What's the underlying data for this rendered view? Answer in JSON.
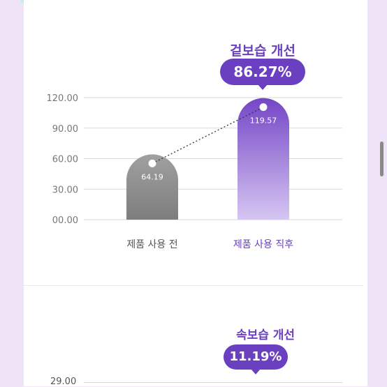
{
  "chart_data": [
    {
      "type": "bar",
      "heading": "겉보습 개선",
      "badge": "86.27%",
      "categories": [
        "제품 사용 전",
        "제품 사용 직후"
      ],
      "values": [
        64.19,
        119.57
      ],
      "value_labels": [
        "64.19",
        "119.57"
      ],
      "yticks": [
        "00.00",
        "30.00",
        "60.00",
        "90.00",
        "120.00"
      ],
      "ylim": [
        0,
        120
      ],
      "grid": true,
      "colors": {
        "before_top": "#a0a0a0",
        "before_bottom": "#7d7d7d",
        "after_top": "#7446c6",
        "after_bottom": "#d6c6f2",
        "after_label": "#6a3fc0",
        "before_label": "#555555"
      }
    },
    {
      "type": "bar",
      "heading": "속보습 개선",
      "badge": "11.19%",
      "yticks": [
        "29.00"
      ]
    }
  ],
  "colors": {
    "accent": "#6a3fc0",
    "background": "#efe3f7"
  }
}
